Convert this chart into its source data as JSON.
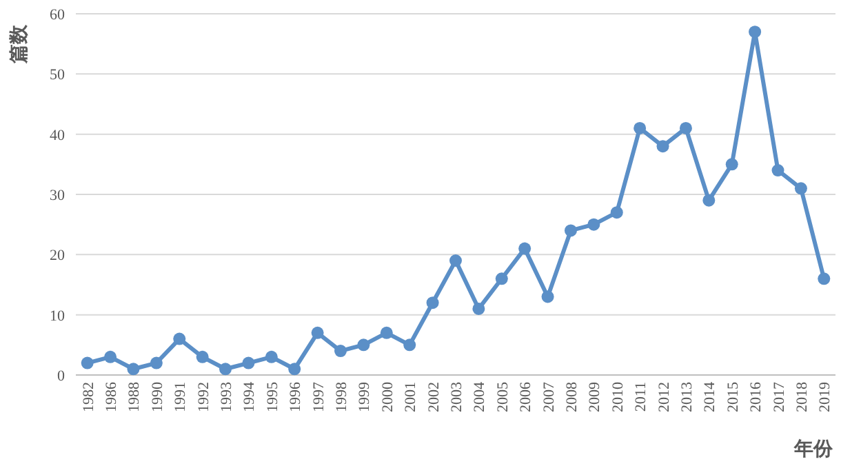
{
  "chart_data": {
    "type": "line",
    "xlabel": "年份",
    "ylabel": "篇数",
    "categories": [
      "1982",
      "1986",
      "1988",
      "1990",
      "1991",
      "1992",
      "1993",
      "1994",
      "1995",
      "1996",
      "1997",
      "1998",
      "1999",
      "2000",
      "2001",
      "2002",
      "2003",
      "2004",
      "2005",
      "2006",
      "2007",
      "2008",
      "2009",
      "2010",
      "2011",
      "2012",
      "2013",
      "2014",
      "2015",
      "2016",
      "2017",
      "2018",
      "2019"
    ],
    "values": [
      2,
      3,
      1,
      2,
      6,
      3,
      1,
      2,
      3,
      1,
      7,
      4,
      5,
      7,
      5,
      12,
      19,
      11,
      16,
      21,
      13,
      24,
      25,
      27,
      41,
      38,
      41,
      29,
      35,
      57,
      34,
      31,
      16
    ],
    "color": "#5b8fc7",
    "ylim": [
      0,
      60
    ],
    "yticks": [
      0,
      10,
      20,
      30,
      40,
      50,
      60
    ],
    "grid": "y",
    "marker": "circle",
    "line_style": "solid"
  }
}
